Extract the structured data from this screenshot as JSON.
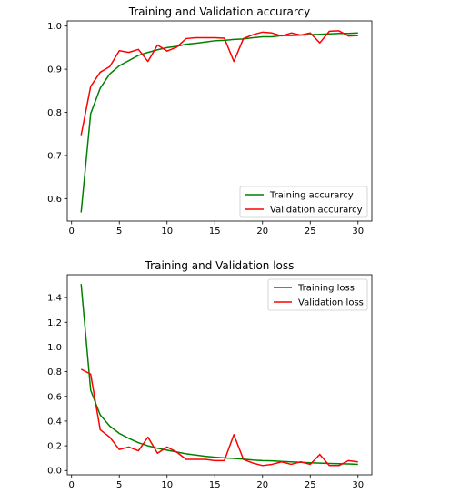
{
  "chart_data": [
    {
      "type": "line",
      "title": "Training and Validation accurarcy",
      "xlabel": "",
      "ylabel": "",
      "xlim": [
        -0.45,
        31.45
      ],
      "ylim": [
        0.548,
        1.012
      ],
      "xticks": [
        0,
        5,
        10,
        15,
        20,
        25,
        30
      ],
      "yticks": [
        0.6,
        0.7,
        0.8,
        0.9,
        1.0
      ],
      "ytick_labels": [
        "0.6",
        "0.7",
        "0.8",
        "0.9",
        "1.0"
      ],
      "grid": false,
      "legend_position": "lower-right",
      "x": [
        1,
        2,
        3,
        4,
        5,
        6,
        7,
        8,
        9,
        10,
        11,
        12,
        13,
        14,
        15,
        16,
        17,
        18,
        19,
        20,
        21,
        22,
        23,
        24,
        25,
        26,
        27,
        28,
        29,
        30
      ],
      "series": [
        {
          "name": "Training accurarcy",
          "color": "#008000",
          "values": [
            0.568,
            0.797,
            0.856,
            0.889,
            0.908,
            0.92,
            0.932,
            0.939,
            0.945,
            0.95,
            0.953,
            0.958,
            0.96,
            0.963,
            0.966,
            0.967,
            0.969,
            0.97,
            0.973,
            0.975,
            0.975,
            0.978,
            0.978,
            0.979,
            0.98,
            0.981,
            0.982,
            0.983,
            0.983,
            0.984
          ]
        },
        {
          "name": "Validation accurarcy",
          "color": "#ff0000",
          "values": [
            0.747,
            0.86,
            0.893,
            0.906,
            0.943,
            0.939,
            0.946,
            0.918,
            0.956,
            0.942,
            0.951,
            0.971,
            0.973,
            0.973,
            0.973,
            0.972,
            0.918,
            0.971,
            0.98,
            0.986,
            0.984,
            0.977,
            0.984,
            0.979,
            0.984,
            0.961,
            0.988,
            0.989,
            0.977,
            0.978
          ]
        }
      ]
    },
    {
      "type": "line",
      "title": "Training and Validation loss",
      "xlabel": "",
      "ylabel": "",
      "xlim": [
        -0.45,
        31.45
      ],
      "ylim": [
        -0.035,
        1.585
      ],
      "xticks": [
        0,
        5,
        10,
        15,
        20,
        25,
        30
      ],
      "yticks": [
        0.0,
        0.2,
        0.4,
        0.6,
        0.8,
        1.0,
        1.2,
        1.4
      ],
      "ytick_labels": [
        "0.0",
        "0.2",
        "0.4",
        "0.6",
        "0.8",
        "1.0",
        "1.2",
        "1.4"
      ],
      "grid": false,
      "legend_position": "upper-right",
      "x": [
        1,
        2,
        3,
        4,
        5,
        6,
        7,
        8,
        9,
        10,
        11,
        12,
        13,
        14,
        15,
        16,
        17,
        18,
        19,
        20,
        21,
        22,
        23,
        24,
        25,
        26,
        27,
        28,
        29,
        30
      ],
      "series": [
        {
          "name": "Training loss",
          "color": "#008000",
          "values": [
            1.51,
            0.65,
            0.45,
            0.36,
            0.3,
            0.26,
            0.225,
            0.2,
            0.18,
            0.165,
            0.15,
            0.135,
            0.125,
            0.115,
            0.108,
            0.102,
            0.098,
            0.092,
            0.085,
            0.08,
            0.078,
            0.074,
            0.07,
            0.066,
            0.063,
            0.06,
            0.057,
            0.055,
            0.053,
            0.05
          ]
        },
        {
          "name": "Validation loss",
          "color": "#ff0000",
          "values": [
            0.82,
            0.78,
            0.33,
            0.27,
            0.17,
            0.19,
            0.16,
            0.27,
            0.14,
            0.19,
            0.15,
            0.09,
            0.09,
            0.09,
            0.08,
            0.08,
            0.29,
            0.09,
            0.06,
            0.04,
            0.05,
            0.07,
            0.05,
            0.07,
            0.05,
            0.13,
            0.04,
            0.04,
            0.08,
            0.07
          ]
        }
      ]
    }
  ]
}
